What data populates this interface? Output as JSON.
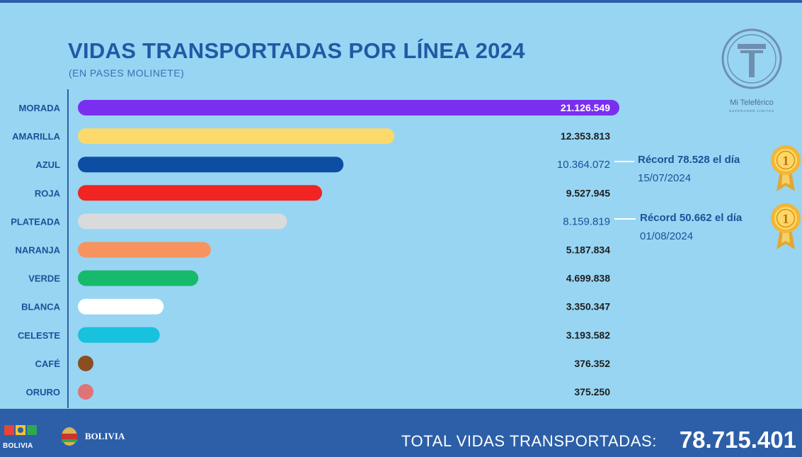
{
  "chart_data": {
    "type": "bar",
    "orientation": "horizontal",
    "title": "VIDAS TRANSPORTADAS POR LÍNEA 2024",
    "subtitle": "(EN PASES MOLINETE)",
    "categories": [
      "MORADA",
      "AMARILLA",
      "AZUL",
      "ROJA",
      "PLATEADA",
      "NARANJA",
      "VERDE",
      "BLANCA",
      "CELESTE",
      "CAFÉ",
      "ORURO"
    ],
    "values": [
      21126549,
      12353813,
      10364072,
      9527945,
      8159819,
      5187834,
      4699838,
      3350347,
      3193582,
      376352,
      375250
    ],
    "value_labels": [
      "21.126.549",
      "12.353.813",
      "10.364.072",
      "9.527.945",
      "8.159.819",
      "5.187.834",
      "4.699.838",
      "3.350.347",
      "3.193.582",
      "376.352",
      "375.250"
    ],
    "colors": [
      "#7a2ff0",
      "#fbd96a",
      "#0d4ea3",
      "#f02420",
      "#d9dadb",
      "#f7935e",
      "#17b96a",
      "#ffffff",
      "#18c1dd",
      "#8a4e21",
      "#df7478"
    ],
    "value_label_colors": [
      "#ffffff",
      "#1e1e1e",
      "#1f4f98",
      "#1e1e1e",
      "#1f4f98",
      "#1e1e1e",
      "#1e1e1e",
      "#1e1e1e",
      "#1e1e1e",
      "#1e1e1e",
      "#1e1e1e"
    ],
    "xlim": [
      0,
      21126549
    ],
    "grid": false,
    "legend": "none"
  },
  "records": [
    {
      "line": "AZUL",
      "line1": "Récord 78.528 el día",
      "line2": "15/07/2024"
    },
    {
      "line": "PLATEADA",
      "line1": "Récord 50.662 el día",
      "line2": "01/08/2024"
    }
  ],
  "medal_icon": "gold-medal-icon",
  "logo": {
    "name": "Mi Teleférico",
    "tagline": "SUPERANDO LÍMITES"
  },
  "footer": {
    "total_label": "TOTAL VIDAS TRANSPORTADAS:",
    "total_value": "78.715.401",
    "logo1_text": "BOLIVIA",
    "logo2_text": "BOLIVIA"
  }
}
